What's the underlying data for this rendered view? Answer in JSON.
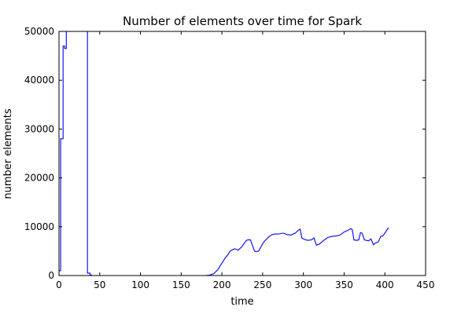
{
  "chart_data": {
    "type": "line",
    "title": "Number of elements over time for Spark",
    "xlabel": "time",
    "ylabel": "number elements",
    "xlim": [
      0,
      450
    ],
    "ylim": [
      0,
      50000
    ],
    "xticks": [
      0,
      50,
      100,
      150,
      200,
      250,
      300,
      350,
      400,
      450
    ],
    "yticks": [
      0,
      10000,
      20000,
      30000,
      40000,
      50000
    ],
    "grid": false,
    "line_color": "#0000ff",
    "series": [
      {
        "x": [
          0,
          2,
          2,
          3,
          3,
          5,
          5,
          7,
          7,
          9,
          9,
          10,
          10,
          12,
          12,
          34,
          34,
          35,
          35,
          38,
          38,
          40,
          40,
          180,
          185,
          190,
          195,
          198,
          201,
          204,
          207,
          210,
          213,
          216,
          220,
          225,
          230,
          232,
          235,
          240,
          242,
          245,
          250,
          252,
          255,
          258,
          262,
          265,
          270,
          275,
          280,
          285,
          290,
          294,
          296,
          298,
          300,
          305,
          310,
          313,
          316,
          320,
          325,
          330,
          335,
          340,
          345,
          350,
          355,
          358,
          360,
          362,
          365,
          368,
          370,
          372,
          375,
          380,
          383,
          386,
          388,
          392,
          395,
          398,
          400,
          402,
          404,
          405
        ],
        "y": [
          1000,
          1000,
          28000,
          28000,
          28000,
          28000,
          47000,
          47000,
          46500,
          46500,
          50000,
          50000,
          50000,
          50000,
          50000,
          50000,
          60000,
          60000,
          500,
          500,
          100,
          100,
          0,
          0,
          100,
          400,
          1200,
          2000,
          2800,
          3600,
          4200,
          5000,
          5300,
          5500,
          5200,
          6000,
          7200,
          7300,
          7300,
          5000,
          4900,
          5000,
          6500,
          7000,
          7500,
          8000,
          8400,
          8500,
          8500,
          8700,
          8400,
          8300,
          8700,
          9300,
          9500,
          7700,
          7500,
          7200,
          7300,
          7700,
          6200,
          6500,
          7200,
          7800,
          8000,
          8100,
          8300,
          8900,
          9300,
          9600,
          9400,
          7300,
          7200,
          7300,
          8800,
          8700,
          7300,
          7100,
          7500,
          6300,
          6600,
          6900,
          8000,
          8200,
          8700,
          9200,
          9700,
          9600
        ]
      }
    ]
  }
}
